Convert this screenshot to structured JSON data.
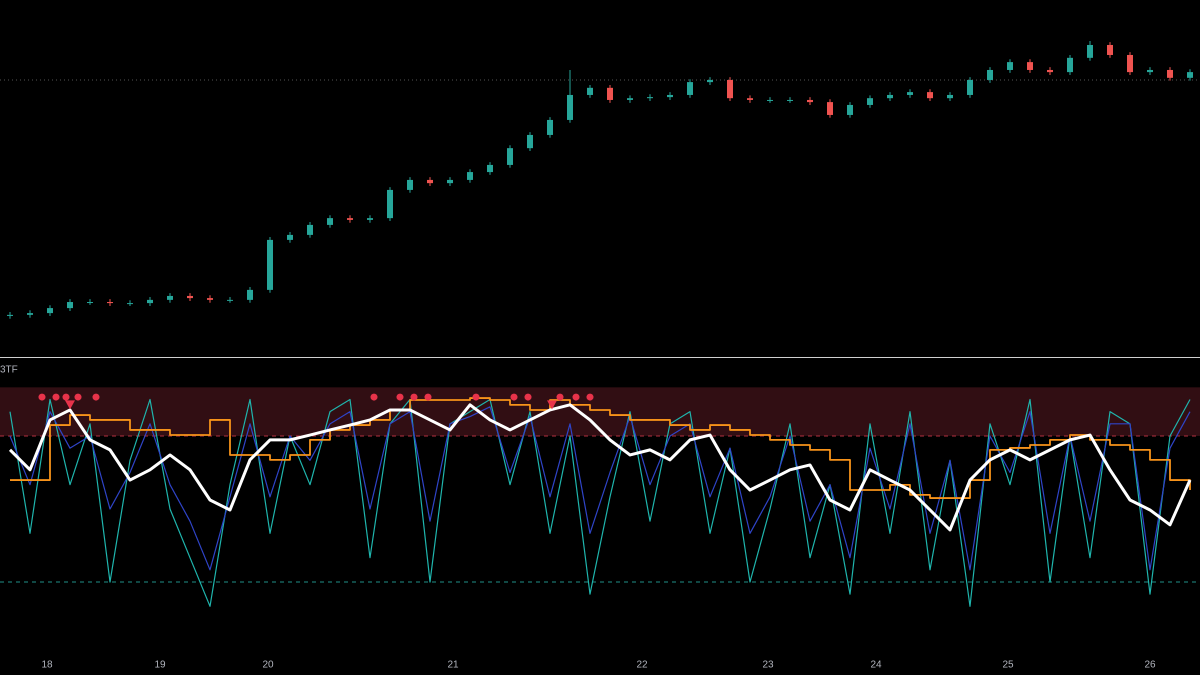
{
  "chart_data": [
    {
      "type": "candlestick",
      "xlim": [
        -0.5,
        59.5
      ],
      "ylim": [
        0,
        100
      ],
      "up_color": "#26a69a",
      "down_color": "#ef5350",
      "reference_line": 77.6,
      "open": [
        11.5,
        11.8,
        12.3,
        13.7,
        15.4,
        15.4,
        15.1,
        15.1,
        16.0,
        17.1,
        16.5,
        16.0,
        16.0,
        18.8,
        32.8,
        34.2,
        37.0,
        38.9,
        38.4,
        38.9,
        46.8,
        49.6,
        48.7,
        49.6,
        51.8,
        53.8,
        58.5,
        62.2,
        66.4,
        73.4,
        75.4,
        72.0,
        72.5,
        72.8,
        73.4,
        77.0,
        77.6,
        72.5,
        72.0,
        72.0,
        72.0,
        71.4,
        67.8,
        70.6,
        72.5,
        73.4,
        74.2,
        72.5,
        73.4,
        77.6,
        80.4,
        82.6,
        80.4,
        79.8,
        83.8,
        87.4,
        84.6,
        79.8,
        80.4,
        78.2
      ],
      "high": [
        12.6,
        13.1,
        14.5,
        16.2,
        16.2,
        16.2,
        15.9,
        16.8,
        17.9,
        17.9,
        17.3,
        16.8,
        19.6,
        33.6,
        35.0,
        37.8,
        39.7,
        39.7,
        39.7,
        47.6,
        50.4,
        50.4,
        50.4,
        52.6,
        54.6,
        59.3,
        63.0,
        67.2,
        80.4,
        76.2,
        76.2,
        73.3,
        73.6,
        74.2,
        77.8,
        78.4,
        78.4,
        73.3,
        72.8,
        72.8,
        72.8,
        72.2,
        71.4,
        73.3,
        74.2,
        75.0,
        75.0,
        74.2,
        78.4,
        81.2,
        83.4,
        83.4,
        81.2,
        84.6,
        88.5,
        88.2,
        85.4,
        81.2,
        81.2,
        80.6
      ],
      "low": [
        10.7,
        11.0,
        11.5,
        12.9,
        14.6,
        14.3,
        14.3,
        14.3,
        15.2,
        15.7,
        15.2,
        15.2,
        15.2,
        18.0,
        32.0,
        33.4,
        36.2,
        37.6,
        37.6,
        38.1,
        46.0,
        47.9,
        47.9,
        48.8,
        51.0,
        53.0,
        57.7,
        61.4,
        65.6,
        72.6,
        71.2,
        71.2,
        71.7,
        72.0,
        72.6,
        76.2,
        71.7,
        71.2,
        71.2,
        71.2,
        70.6,
        67.0,
        67.0,
        69.8,
        71.7,
        72.6,
        71.7,
        71.7,
        72.6,
        76.8,
        79.6,
        79.6,
        79.0,
        79.0,
        83.0,
        83.8,
        79.0,
        79.0,
        77.4,
        77.4
      ],
      "close": [
        11.8,
        12.3,
        13.7,
        15.4,
        15.4,
        15.1,
        15.1,
        16.0,
        17.1,
        16.5,
        16.0,
        16.0,
        18.8,
        32.8,
        34.2,
        37.0,
        38.9,
        38.4,
        38.9,
        46.8,
        49.6,
        48.7,
        49.6,
        51.8,
        53.8,
        58.5,
        62.2,
        66.4,
        73.4,
        75.4,
        72.0,
        72.5,
        72.8,
        73.4,
        77.0,
        77.6,
        72.5,
        72.0,
        72.0,
        72.0,
        71.4,
        67.8,
        70.6,
        72.5,
        73.4,
        74.2,
        72.5,
        73.4,
        77.6,
        80.4,
        82.6,
        80.4,
        79.8,
        83.8,
        87.4,
        84.6,
        79.8,
        80.4,
        78.2,
        79.8
      ]
    },
    {
      "type": "line",
      "title": "3TF",
      "xlim": [
        -0.5,
        59.5
      ],
      "ylim": [
        -10,
        110
      ],
      "xticks": [
        {
          "value": 1.85,
          "label": "18"
        },
        {
          "value": 7.5,
          "label": "19"
        },
        {
          "value": 12.9,
          "label": "20"
        },
        {
          "value": 22.15,
          "label": "21"
        },
        {
          "value": 31.6,
          "label": "22"
        },
        {
          "value": 37.9,
          "label": "23"
        },
        {
          "value": 43.3,
          "label": "24"
        },
        {
          "value": 49.9,
          "label": "25"
        },
        {
          "value": 57,
          "label": "26"
        }
      ],
      "zone": [
        80,
        100
      ],
      "zone_color": "#5a1a22",
      "levels": [
        {
          "value": 80,
          "color": "#b2303f"
        },
        {
          "value": 20,
          "color": "#1f8f88"
        }
      ],
      "series": [
        {
          "color": "#1fb5ad",
          "width": 1.2,
          "values": [
            90,
            40,
            95,
            60,
            85,
            20,
            70,
            95,
            50,
            30,
            10,
            60,
            95,
            40,
            80,
            60,
            90,
            95,
            30,
            85,
            95,
            20,
            85,
            90,
            95,
            60,
            90,
            40,
            80,
            15,
            55,
            90,
            45,
            85,
            90,
            40,
            75,
            20,
            50,
            85,
            30,
            60,
            15,
            85,
            40,
            90,
            25,
            70,
            10,
            85,
            60,
            95,
            20,
            80,
            30,
            90,
            85,
            15,
            80,
            95
          ]
        },
        {
          "color": "#2f44c8",
          "width": 1.2,
          "values": [
            80,
            60,
            90,
            75,
            80,
            50,
            65,
            85,
            60,
            45,
            25,
            55,
            85,
            55,
            80,
            70,
            85,
            90,
            50,
            85,
            90,
            45,
            85,
            88,
            92,
            65,
            88,
            55,
            85,
            40,
            65,
            88,
            60,
            80,
            85,
            55,
            75,
            40,
            55,
            80,
            45,
            60,
            30,
            75,
            50,
            85,
            40,
            70,
            25,
            80,
            65,
            90,
            40,
            80,
            45,
            85,
            85,
            25,
            75,
            90
          ]
        },
        {
          "color": "#f7931a",
          "width": 1.8,
          "step": true,
          "values": [
            61.9,
            61.9,
            84.5,
            88.6,
            86.6,
            86.6,
            82.5,
            82.5,
            80.4,
            80.4,
            86.6,
            72.2,
            72.2,
            70.2,
            72.2,
            78.4,
            82.5,
            84.5,
            86.6,
            90.7,
            94.8,
            94.8,
            94.8,
            95.6,
            94.8,
            92.8,
            90.7,
            94.8,
            92.8,
            90.7,
            88.6,
            86.6,
            86.6,
            84.5,
            82.5,
            84.5,
            82.5,
            80.4,
            78.4,
            76.3,
            74.3,
            70.2,
            57.8,
            57.8,
            59.9,
            55.8,
            54.5,
            54.5,
            61.9,
            74.3,
            75.1,
            76.3,
            78.4,
            80.4,
            78.4,
            76.3,
            74.3,
            70.2,
            61.9,
            57.8
          ]
        },
        {
          "color": "#ffffff",
          "width": 3,
          "values": [
            74.3,
            66.1,
            86.6,
            90.7,
            78.4,
            74.3,
            61.9,
            66.1,
            72.2,
            66.1,
            53.7,
            49.6,
            70.2,
            78.4,
            78.4,
            80.4,
            82.5,
            84.5,
            86.6,
            90.7,
            90.7,
            86.6,
            82.5,
            92.8,
            86.6,
            82.5,
            86.6,
            90.7,
            92.8,
            86.6,
            78.4,
            72.2,
            74.3,
            70.2,
            78.4,
            80.4,
            66.1,
            57.8,
            61.9,
            66.1,
            68.1,
            53.7,
            49.6,
            66.1,
            61.9,
            57.8,
            49.6,
            41.4,
            61.9,
            70.2,
            74.3,
            70.2,
            74.3,
            78.4,
            80.4,
            66.1,
            53.7,
            49.6,
            43.5,
            61.9
          ]
        }
      ],
      "signal_color": "#e8334a",
      "signals": {
        "x": [
          1.6,
          2.3,
          2.8,
          3.4,
          4.3,
          18.2,
          19.5,
          20.2,
          20.9,
          23.3,
          25.2,
          25.9,
          27.5,
          28.3,
          29.0
        ],
        "values": [
          96,
          96,
          96,
          96,
          96,
          96,
          96,
          96,
          96,
          96,
          96,
          96,
          96,
          96,
          96
        ]
      },
      "markers": {
        "x": [
          3.0,
          27.1
        ],
        "values": [
          93,
          93
        ]
      }
    }
  ]
}
